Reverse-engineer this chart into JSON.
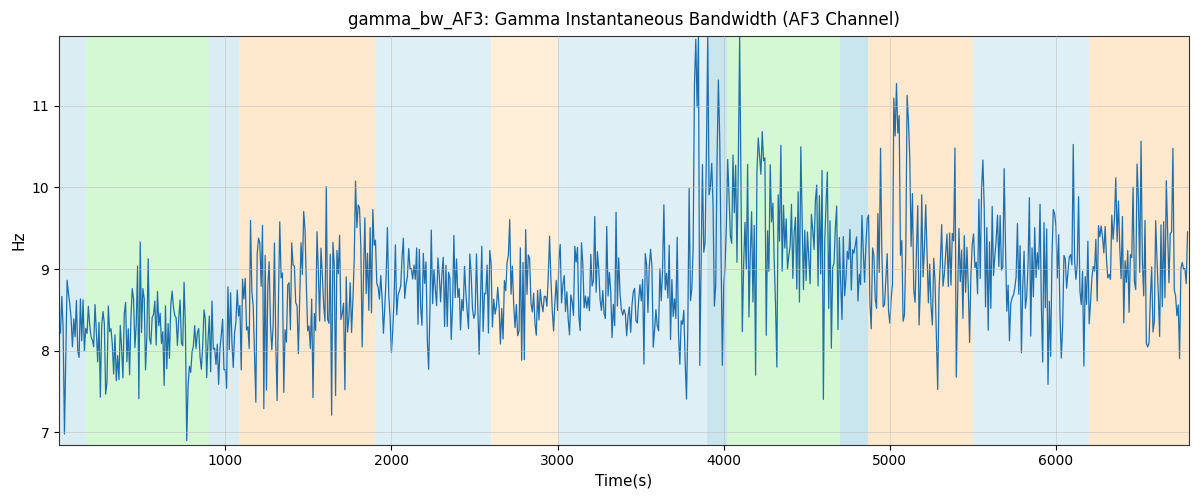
{
  "title": "gamma_bw_AF3: Gamma Instantaneous Bandwidth (AF3 Channel)",
  "xlabel": "Time(s)",
  "ylabel": "Hz",
  "ylim": [
    6.85,
    11.85
  ],
  "xlim": [
    0,
    6800
  ],
  "bg_regions": [
    {
      "xmin": 0,
      "xmax": 160,
      "color": "#add8e6",
      "alpha": 0.45
    },
    {
      "xmin": 160,
      "xmax": 900,
      "color": "#90ee90",
      "alpha": 0.38
    },
    {
      "xmin": 900,
      "xmax": 1080,
      "color": "#add8e6",
      "alpha": 0.45
    },
    {
      "xmin": 1080,
      "xmax": 1900,
      "color": "#ffd59e",
      "alpha": 0.5
    },
    {
      "xmin": 1900,
      "xmax": 2600,
      "color": "#add8e6",
      "alpha": 0.4
    },
    {
      "xmin": 2600,
      "xmax": 3000,
      "color": "#ffd59e",
      "alpha": 0.4
    },
    {
      "xmin": 3000,
      "xmax": 3900,
      "color": "#add8e6",
      "alpha": 0.4
    },
    {
      "xmin": 3900,
      "xmax": 4020,
      "color": "#add8e6",
      "alpha": 0.65
    },
    {
      "xmin": 4020,
      "xmax": 4700,
      "color": "#90ee90",
      "alpha": 0.38
    },
    {
      "xmin": 4700,
      "xmax": 4870,
      "color": "#add8e6",
      "alpha": 0.65
    },
    {
      "xmin": 4870,
      "xmax": 5500,
      "color": "#ffd59e",
      "alpha": 0.5
    },
    {
      "xmin": 5500,
      "xmax": 6200,
      "color": "#add8e6",
      "alpha": 0.4
    },
    {
      "xmin": 6200,
      "xmax": 6800,
      "color": "#ffd59e",
      "alpha": 0.5
    }
  ],
  "line_color": "#1f6fad",
  "line_width": 0.9,
  "grid_color": "#bbbbbb",
  "grid_alpha": 0.7,
  "yticks": [
    7,
    8,
    9,
    10,
    11
  ],
  "xticks": [
    1000,
    2000,
    3000,
    4000,
    5000,
    6000
  ],
  "figsize": [
    12.0,
    5.0
  ],
  "dpi": 100
}
